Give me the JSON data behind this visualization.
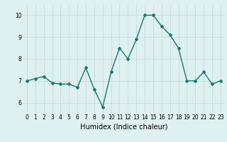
{
  "x": [
    0,
    1,
    2,
    3,
    4,
    5,
    6,
    7,
    8,
    9,
    10,
    11,
    12,
    13,
    14,
    15,
    16,
    17,
    18,
    19,
    20,
    21,
    22,
    23
  ],
  "y": [
    7.0,
    7.1,
    7.2,
    6.9,
    6.85,
    6.85,
    6.7,
    7.6,
    6.6,
    5.8,
    7.4,
    8.5,
    8.0,
    8.9,
    10.0,
    10.0,
    9.5,
    9.1,
    8.5,
    7.0,
    7.0,
    7.4,
    6.85,
    7.0
  ],
  "line_color": "#1a7a6e",
  "marker": "D",
  "marker_size": 2,
  "bg_color": "#dff0f0",
  "grid_color": "#c0d8d8",
  "xlabel": "Humidex (Indice chaleur)",
  "xlabel_fontsize": 7,
  "xlim": [
    -0.5,
    23.5
  ],
  "ylim": [
    5.5,
    10.5
  ],
  "yticks": [
    6,
    7,
    8,
    9,
    10
  ],
  "xticks": [
    0,
    1,
    2,
    3,
    4,
    5,
    6,
    7,
    8,
    9,
    10,
    11,
    12,
    13,
    14,
    15,
    16,
    17,
    18,
    19,
    20,
    21,
    22,
    23
  ],
  "tick_fontsize": 5.5,
  "line_width": 1.0
}
